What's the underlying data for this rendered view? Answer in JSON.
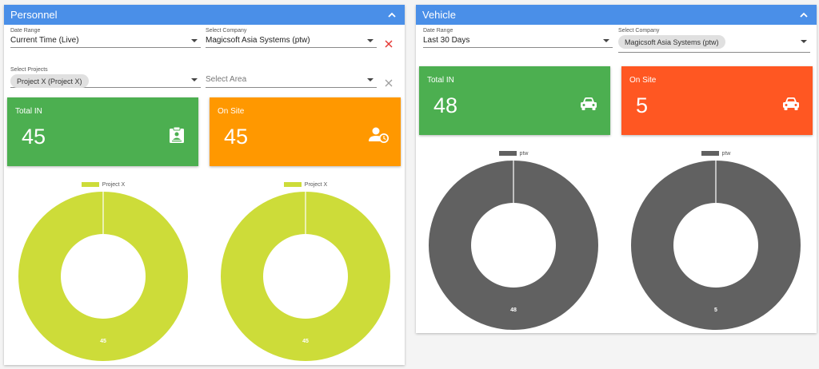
{
  "personnel": {
    "title": "Personnel",
    "date_range": {
      "label": "Date Range",
      "value": "Current Time (Live)"
    },
    "company": {
      "label": "Select Company",
      "value": "Magicsoft Asia Systems (ptw)"
    },
    "projects": {
      "label": "Select Projects",
      "chip": "Project X (Project X)"
    },
    "area": {
      "placeholder": "Select Area"
    },
    "cards": [
      {
        "title": "Total IN",
        "value": "45",
        "color": "#4caf50",
        "icon": "clipboard-account-icon"
      },
      {
        "title": "On Site",
        "value": "45",
        "color": "#ff9800",
        "icon": "person-clock-icon"
      }
    ],
    "charts": [
      {
        "legend": "Project X",
        "color": "#cddc39",
        "value": 45,
        "label": "45"
      },
      {
        "legend": "Project X",
        "color": "#cddc39",
        "value": 45,
        "label": "45"
      }
    ]
  },
  "vehicle": {
    "title": "Vehicle",
    "date_range": {
      "label": "Date Range",
      "value": "Last 30 Days"
    },
    "company": {
      "label": "Select Company",
      "chip": "Magicsoft Asia Systems (ptw)"
    },
    "cards": [
      {
        "title": "Total IN",
        "value": "48",
        "color": "#4caf50",
        "icon": "car-icon"
      },
      {
        "title": "On Site",
        "value": "5",
        "color": "#ff5722",
        "icon": "car-icon"
      }
    ],
    "charts": [
      {
        "legend": "ptw",
        "color": "#616161",
        "value": 48,
        "label": "48"
      },
      {
        "legend": "ptw",
        "color": "#616161",
        "value": 5,
        "label": "5"
      }
    ]
  },
  "colors": {
    "header": "#4a8fe8",
    "clear_red": "#e53935",
    "clear_grey": "#9e9e9e"
  }
}
